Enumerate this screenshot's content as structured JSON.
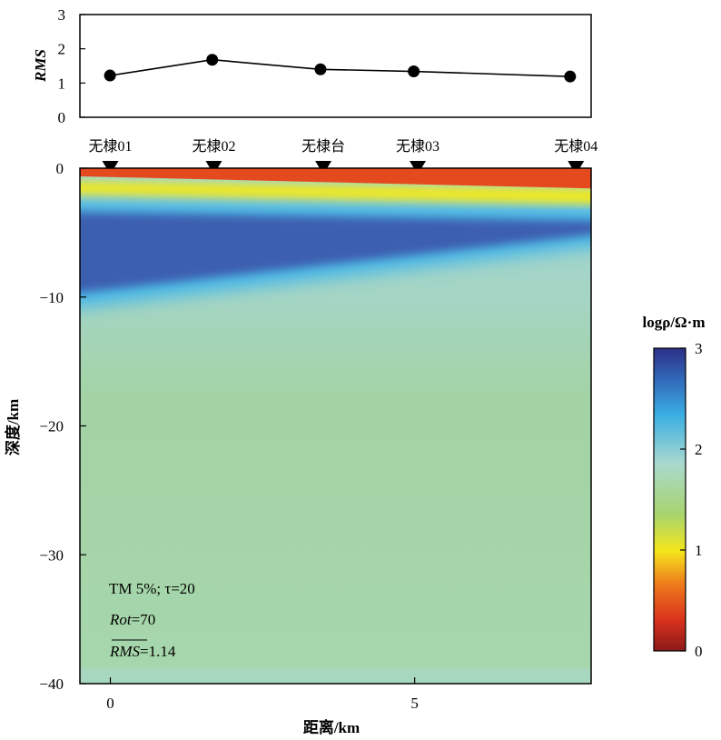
{
  "rms_chart": {
    "type": "line",
    "ylabel": "RMS",
    "yticks": [
      "0",
      "1",
      "2",
      "3"
    ],
    "ylim": [
      0,
      3
    ],
    "xlim": [
      -1,
      16
    ],
    "points": [
      {
        "x": 0,
        "y": 1.22
      },
      {
        "x": 3.4,
        "y": 1.68
      },
      {
        "x": 7.0,
        "y": 1.4
      },
      {
        "x": 10.1,
        "y": 1.34
      },
      {
        "x": 15.3,
        "y": 1.19
      }
    ],
    "marker_color": "#000000"
  },
  "model": {
    "type": "heatmap",
    "xlabel": "距离/km",
    "ylabel": "深度/km",
    "xticks": [
      {
        "v": 0,
        "label": "0"
      },
      {
        "v": 5,
        "label": "5"
      }
    ],
    "yticks": [
      {
        "v": 0,
        "label": "0"
      },
      {
        "v": -10,
        "label": "−10"
      },
      {
        "v": -20,
        "label": "−20"
      },
      {
        "v": -30,
        "label": "−30"
      },
      {
        "v": -40,
        "label": "−40"
      }
    ],
    "xlim": [
      -0.5,
      7.9
    ],
    "ylim": [
      -40,
      0
    ],
    "stations": [
      {
        "name": "无棣01",
        "x": 0
      },
      {
        "name": "无棣02",
        "x": 1.7
      },
      {
        "name": "无棣台",
        "x": 3.5
      },
      {
        "name": "无棣03",
        "x": 5.05
      },
      {
        "name": "无棣04",
        "x": 7.65
      }
    ],
    "annotations": {
      "tm": "TM 5%; τ=20",
      "rot": "Rot=70",
      "rms": "RMS=1.14"
    },
    "layers": {
      "x_anchors": [
        -0.5,
        7.9
      ],
      "top_depth_left": [
        -0.6,
        -0.3
      ],
      "top_depth_right": [
        -1.0,
        -0.6
      ],
      "surface_conductor_left": [
        -1.5,
        -1.0
      ],
      "surface_conductor_right": [
        -2.3,
        -1.6
      ],
      "resistor_left": [
        -9.8,
        -3.4
      ],
      "resistor_right": [
        -5.0,
        -4.1
      ],
      "basement_log_rho": 1.7
    }
  },
  "colorbar": {
    "title": "logρ/Ω·m",
    "ticks": [
      "0",
      "1",
      "2",
      "3"
    ],
    "range": [
      0,
      3
    ],
    "colors": [
      "#8b1a1a",
      "#e03a1f",
      "#f08a1c",
      "#f5e61c",
      "#9fd37a",
      "#a9d9cf",
      "#3aaee3",
      "#3166b8",
      "#2b2f86"
    ]
  }
}
